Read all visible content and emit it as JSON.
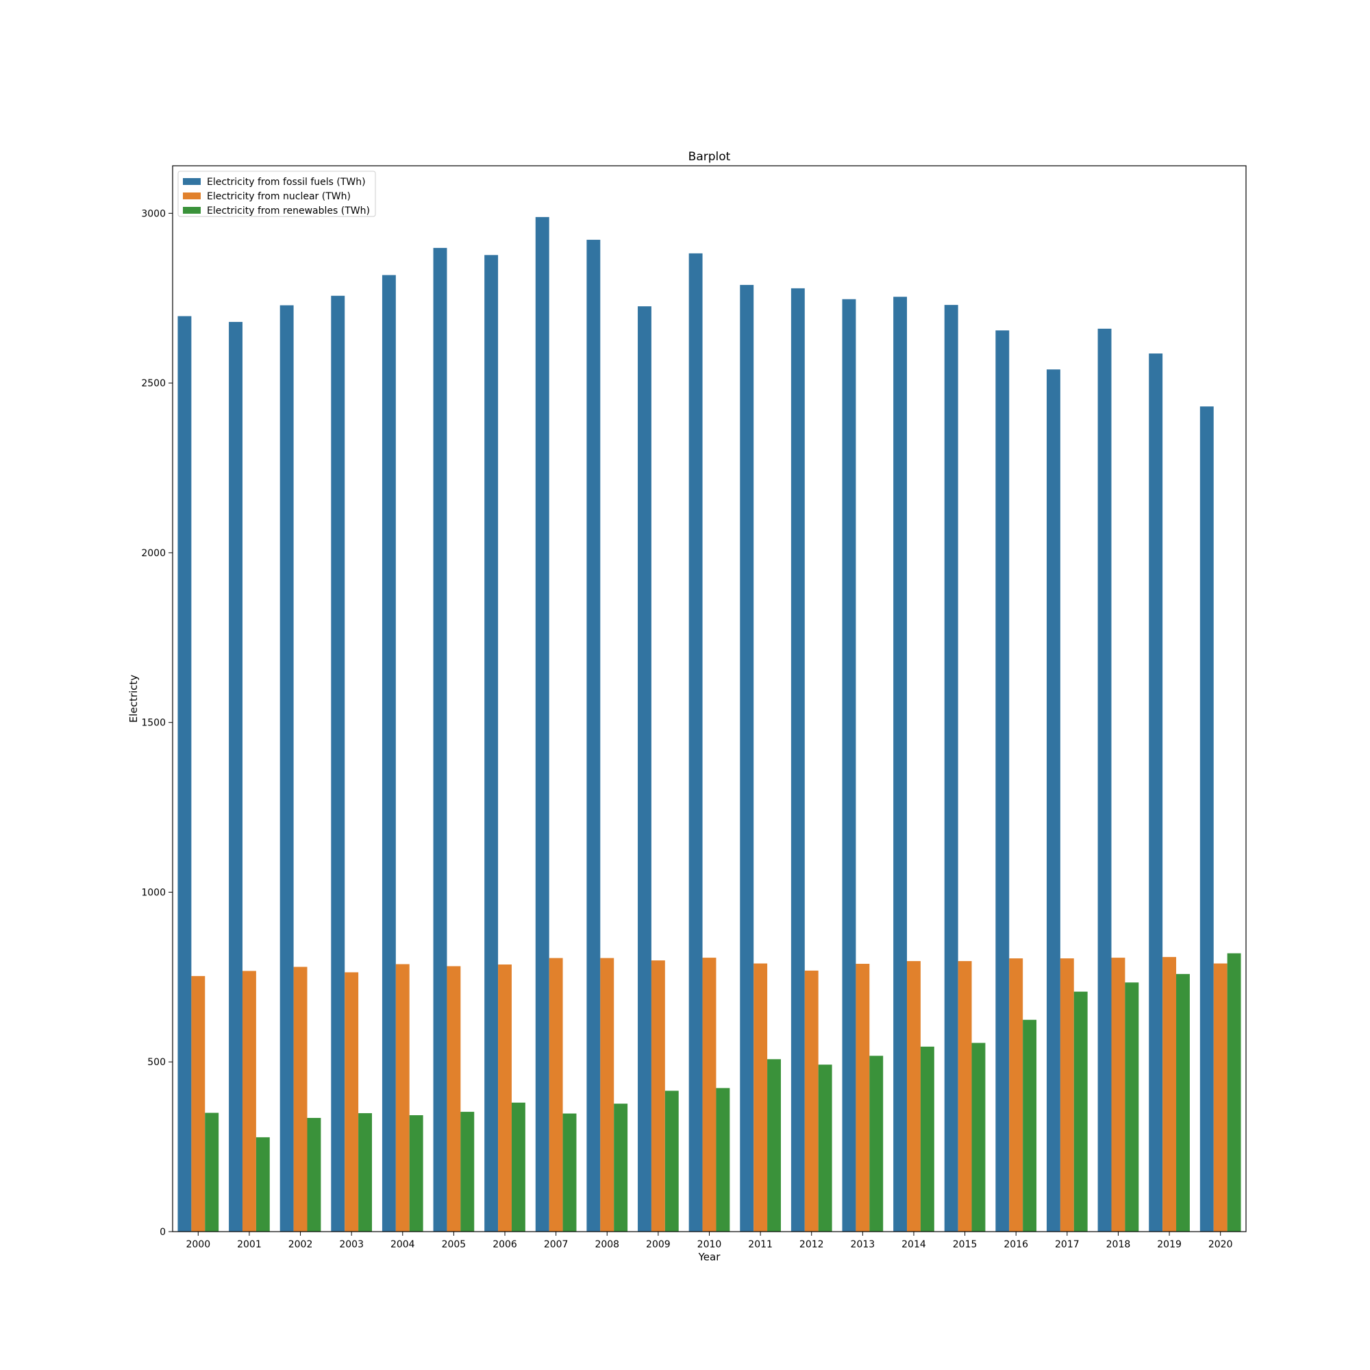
{
  "chart_data": {
    "type": "bar",
    "title": "Barplot",
    "xlabel": "Year",
    "ylabel": "Electricty",
    "ylim": [
      0,
      3140
    ],
    "yticks": [
      0,
      500,
      1000,
      1500,
      2000,
      2500,
      3000
    ],
    "grid": false,
    "legend_position": "top-left",
    "categories": [
      "2000",
      "2001",
      "2002",
      "2003",
      "2004",
      "2005",
      "2006",
      "2007",
      "2008",
      "2009",
      "2010",
      "2011",
      "2012",
      "2013",
      "2014",
      "2015",
      "2016",
      "2017",
      "2018",
      "2019",
      "2020"
    ],
    "series": [
      {
        "name": "Electricity from fossil fuels (TWh)",
        "color": "#3274a1",
        "values": [
          2697,
          2680,
          2729,
          2757,
          2818,
          2898,
          2877,
          2989,
          2922,
          2726,
          2882,
          2789,
          2779,
          2747,
          2754,
          2730,
          2655,
          2540,
          2660,
          2587,
          2431
        ]
      },
      {
        "name": "Electricity from nuclear (TWh)",
        "color": "#e1812c",
        "values": [
          753,
          768,
          780,
          764,
          788,
          782,
          787,
          806,
          806,
          799,
          807,
          790,
          769,
          789,
          797,
          797,
          805,
          805,
          807,
          809,
          790
        ]
      },
      {
        "name": "Electricity from renewables (TWh)",
        "color": "#3a923a",
        "values": [
          350,
          278,
          335,
          349,
          343,
          353,
          380,
          348,
          377,
          415,
          423,
          508,
          492,
          518,
          545,
          556,
          624,
          707,
          734,
          759,
          820
        ]
      }
    ]
  }
}
